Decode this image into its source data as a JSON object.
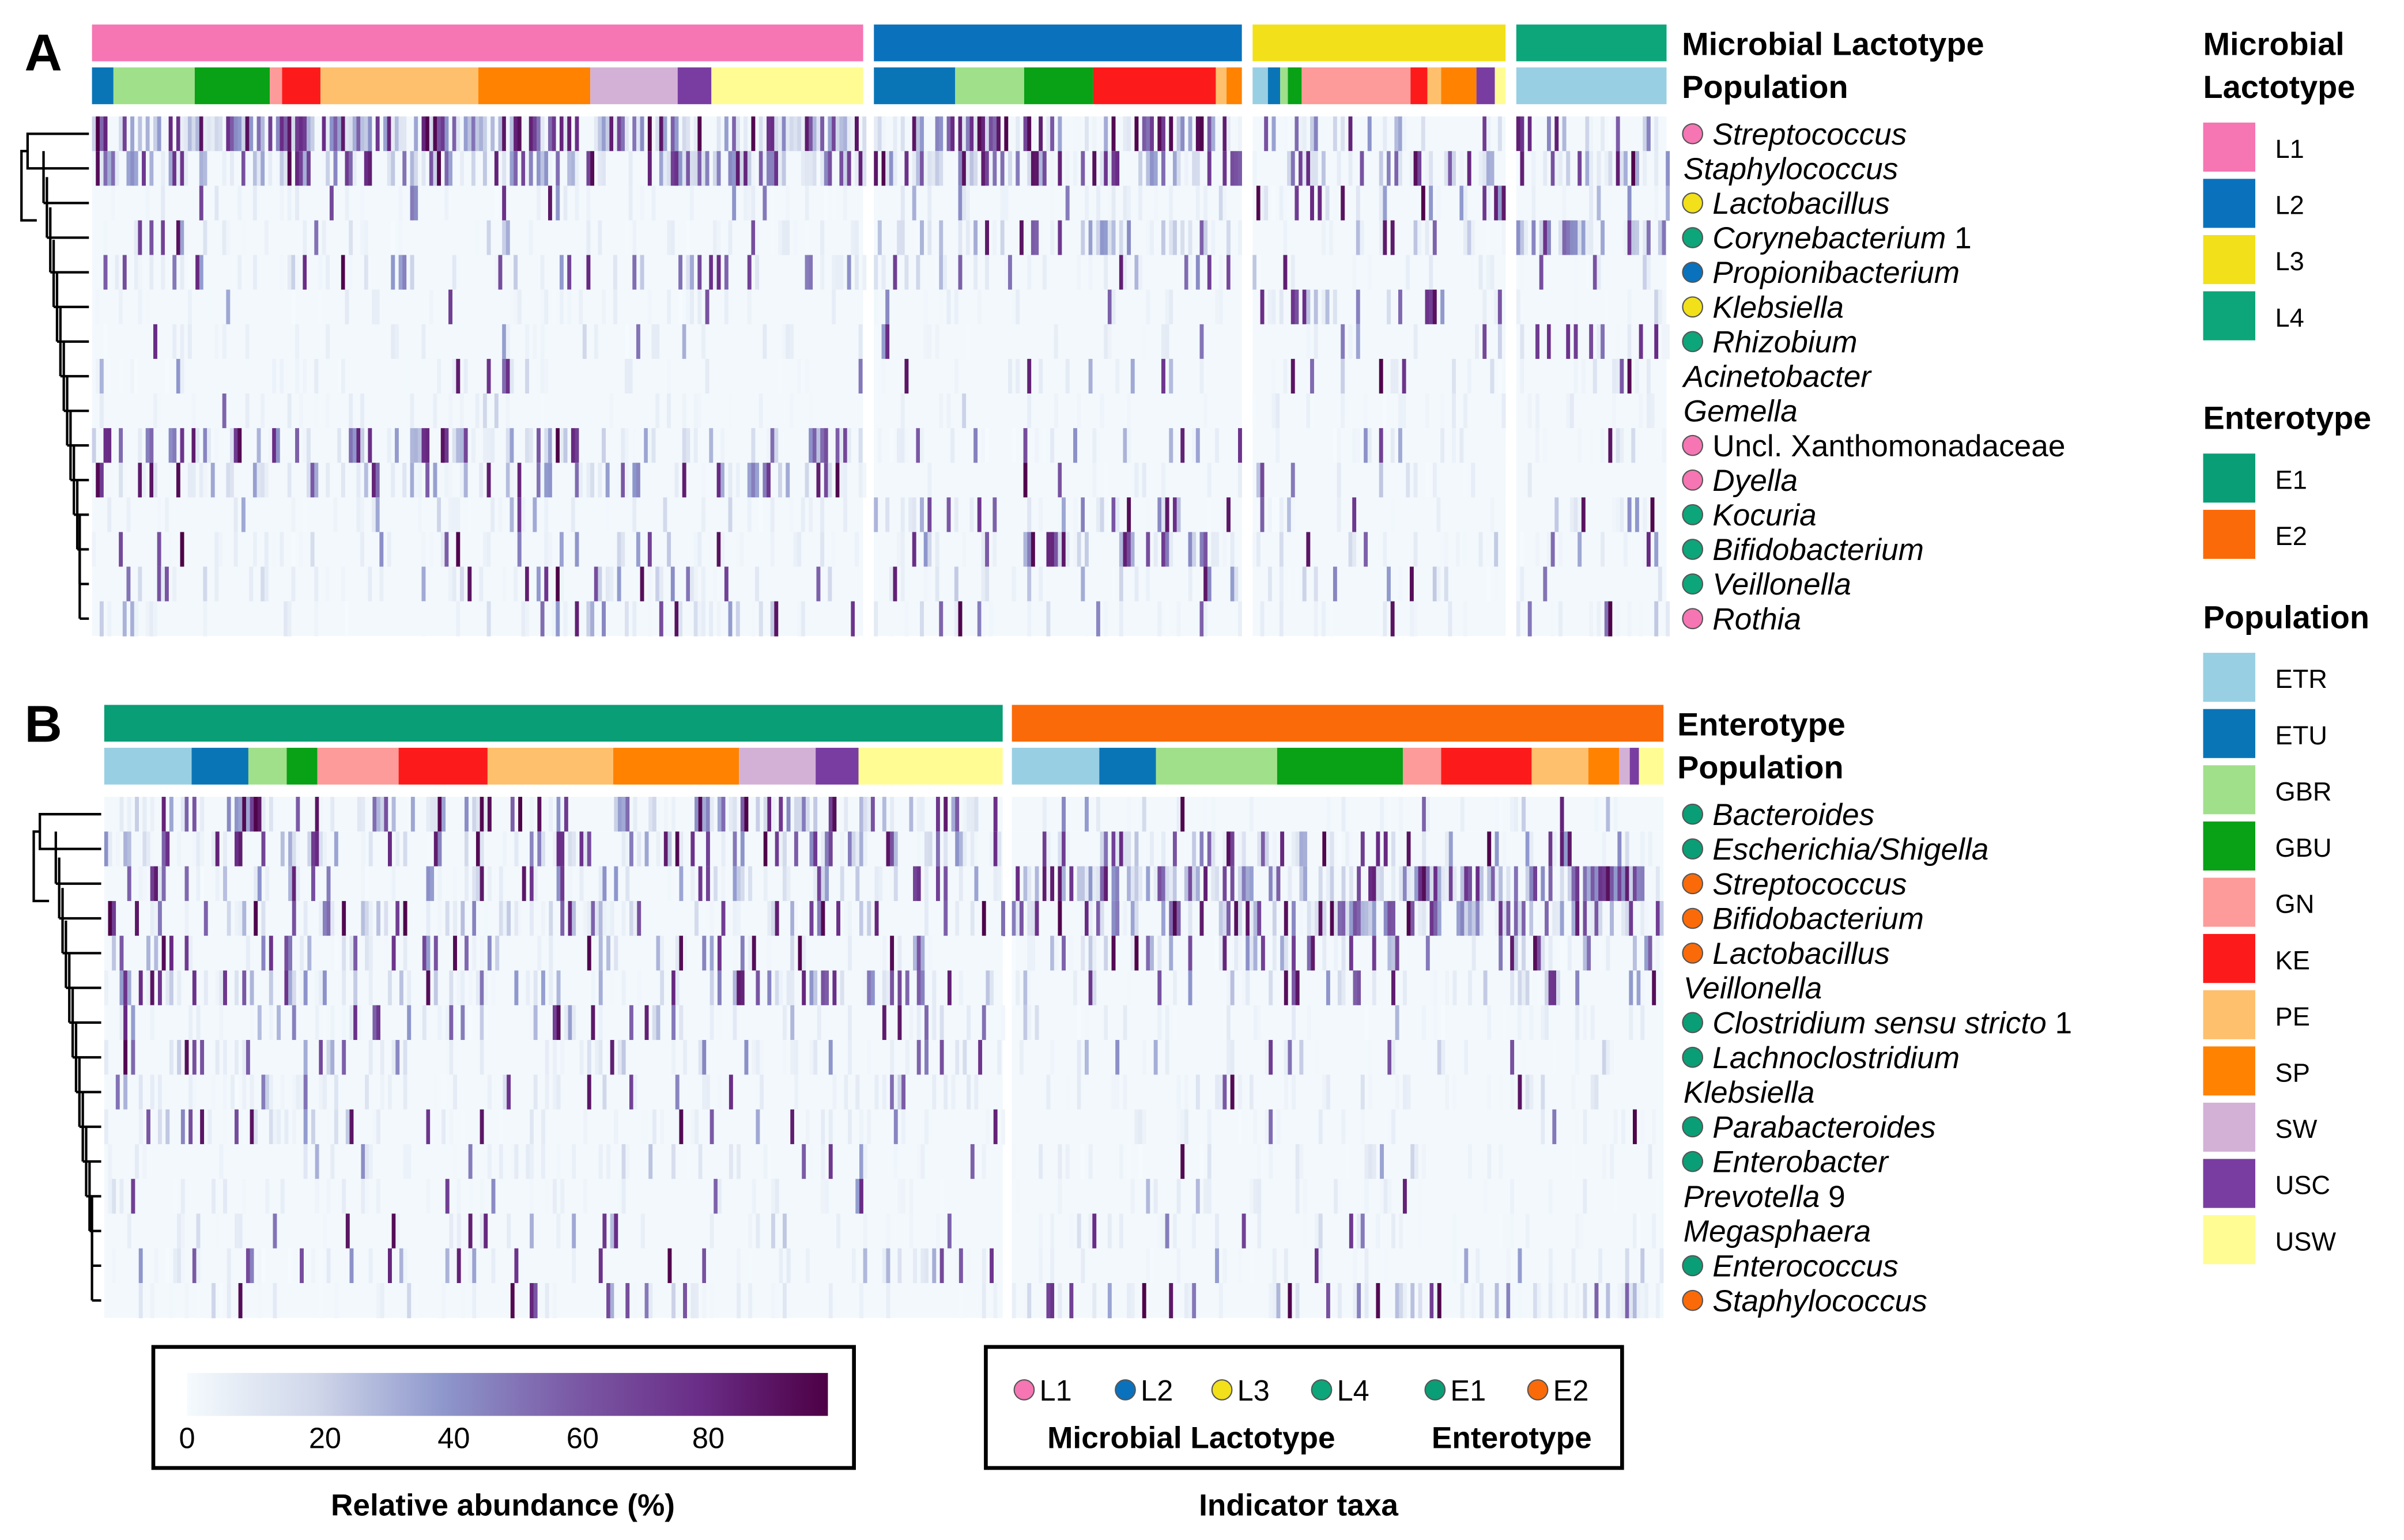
{
  "colors": {
    "L1": "#f675b3",
    "L2": "#0a72bd",
    "L3": "#f2e01a",
    "L4": "#0ca67a",
    "E1": "#0a9e76",
    "E2": "#fb6a08",
    "ETR": "#99cfe3",
    "ETU": "#0a75b6",
    "GBR": "#a1e08a",
    "GBU": "#09a116",
    "GN": "#fc9b99",
    "KE": "#fd1a1a",
    "PE": "#fec06d",
    "SP": "#ff8200",
    "SW": "#d3b1d6",
    "USC": "#793da1",
    "USW": "#fffc94",
    "scale": [
      "#f4fafd",
      "#d0d7ea",
      "#8e97cc",
      "#7b5aa6",
      "#6a2d87",
      "#4d0045"
    ]
  },
  "chart_data": [
    {
      "type": "heatmap",
      "panel_label": "A",
      "annotation_labels": [
        "Microbial Lactotype",
        "Population"
      ],
      "groups": [
        "L1",
        "L2",
        "L3",
        "L4"
      ],
      "population_order": {
        "L1": [
          "ETU",
          "GBR",
          "GBU",
          "GN",
          "KE",
          "PE",
          "SP",
          "SW",
          "USC",
          "USW"
        ],
        "L2": [
          "ETU",
          "GBR",
          "GBU",
          "KE",
          "PE",
          "SP"
        ],
        "L3": [
          "ETR",
          "ETU",
          "GBR",
          "GBU",
          "GN",
          "KE",
          "PE",
          "SP",
          "USC",
          "USW"
        ],
        "L4": [
          "ETR"
        ]
      },
      "rows": [
        {
          "name": "Streptococcus",
          "suffix": "",
          "italic": true,
          "indicator": "L1",
          "density": [
            0.7,
            0.5,
            0.25,
            0.3
          ]
        },
        {
          "name": "Staphylococcus",
          "suffix": "",
          "italic": true,
          "indicator": null,
          "density": [
            0.55,
            0.5,
            0.3,
            0.4
          ]
        },
        {
          "name": "Lactobacillus",
          "suffix": "",
          "italic": true,
          "indicator": "L3",
          "density": [
            0.05,
            0.05,
            0.3,
            0.03
          ]
        },
        {
          "name": "Corynebacterium",
          "suffix": " 1",
          "italic": true,
          "indicator": "L4",
          "density": [
            0.1,
            0.3,
            0.05,
            0.45
          ]
        },
        {
          "name": "Propionibacterium",
          "suffix": "",
          "italic": true,
          "indicator": "L2",
          "density": [
            0.15,
            0.15,
            0.05,
            0.1
          ]
        },
        {
          "name": "Klebsiella",
          "suffix": "",
          "italic": true,
          "indicator": "L3",
          "density": [
            0.02,
            0.03,
            0.15,
            0.02
          ]
        },
        {
          "name": "Rhizobium",
          "suffix": "",
          "italic": true,
          "indicator": "L4",
          "density": [
            0.03,
            0.03,
            0.05,
            0.3
          ]
        },
        {
          "name": "Acinetobacter",
          "suffix": "",
          "italic": true,
          "indicator": null,
          "density": [
            0.05,
            0.05,
            0.1,
            0.05
          ]
        },
        {
          "name": "Gemella",
          "suffix": "",
          "italic": true,
          "indicator": null,
          "density": [
            0.03,
            0.03,
            0.03,
            0.03
          ]
        },
        {
          "name": "Uncl. Xanthomonadaceae",
          "suffix": "",
          "italic": false,
          "indicator": "L1",
          "density": [
            0.3,
            0.05,
            0.05,
            0.05
          ]
        },
        {
          "name": "Dyella",
          "suffix": "",
          "italic": true,
          "indicator": "L1",
          "density": [
            0.25,
            0.05,
            0.03,
            0.03
          ]
        },
        {
          "name": "Kocuria",
          "suffix": "",
          "italic": true,
          "indicator": "L4",
          "density": [
            0.05,
            0.2,
            0.05,
            0.3
          ]
        },
        {
          "name": "Bifidobacterium",
          "suffix": "",
          "italic": true,
          "indicator": "L4",
          "density": [
            0.05,
            0.2,
            0.1,
            0.05
          ]
        },
        {
          "name": "Veillonella",
          "suffix": "",
          "italic": true,
          "indicator": "L4",
          "density": [
            0.1,
            0.15,
            0.1,
            0.1
          ]
        },
        {
          "name": "Rothia",
          "suffix": "",
          "italic": true,
          "indicator": "L1",
          "density": [
            0.1,
            0.1,
            0.05,
            0.1
          ]
        }
      ]
    },
    {
      "type": "heatmap",
      "panel_label": "B",
      "annotation_labels": [
        "Enterotype",
        "Population"
      ],
      "groups": [
        "E1",
        "E2"
      ],
      "population_order": {
        "E1": [
          "ETR",
          "ETU",
          "GBR",
          "GBU",
          "GN",
          "KE",
          "PE",
          "SP",
          "SW",
          "USC",
          "USW"
        ],
        "E2": [
          "ETR",
          "ETU",
          "GBR",
          "GBU",
          "GN",
          "KE",
          "PE",
          "SP",
          "SW",
          "USC",
          "USW"
        ]
      },
      "rows": [
        {
          "name": "Bacteroides",
          "suffix": "",
          "italic": true,
          "indicator": "E1",
          "density": [
            0.35,
            0.03
          ]
        },
        {
          "name": "Escherichia/Shigella",
          "suffix": "",
          "italic": true,
          "indicator": "E1",
          "density": [
            0.4,
            0.3
          ]
        },
        {
          "name": "Streptococcus",
          "suffix": "",
          "italic": true,
          "indicator": "E2",
          "density": [
            0.2,
            0.6
          ]
        },
        {
          "name": "Bifidobacterium",
          "suffix": "",
          "italic": true,
          "indicator": "E2",
          "density": [
            0.2,
            0.45
          ]
        },
        {
          "name": "Lactobacillus",
          "suffix": "",
          "italic": true,
          "indicator": "E2",
          "density": [
            0.15,
            0.3
          ]
        },
        {
          "name": "Veillonella",
          "suffix": "",
          "italic": true,
          "indicator": null,
          "density": [
            0.3,
            0.2
          ]
        },
        {
          "name": "Clostridium sensu stricto",
          "suffix": " 1",
          "italic": true,
          "indicator": "E1",
          "density": [
            0.15,
            0.03
          ]
        },
        {
          "name": "Lachnoclostridium",
          "suffix": "",
          "italic": true,
          "indicator": "E1",
          "density": [
            0.15,
            0.03
          ]
        },
        {
          "name": "Klebsiella",
          "suffix": "",
          "italic": true,
          "indicator": null,
          "density": [
            0.1,
            0.05
          ]
        },
        {
          "name": "Parabacteroides",
          "suffix": "",
          "italic": true,
          "indicator": "E1",
          "density": [
            0.1,
            0.02
          ]
        },
        {
          "name": "Enterobacter",
          "suffix": "",
          "italic": true,
          "indicator": "E1",
          "density": [
            0.05,
            0.03
          ]
        },
        {
          "name": "Prevotella",
          "suffix": " 9",
          "italic": true,
          "indicator": null,
          "density": [
            0.03,
            0.02
          ]
        },
        {
          "name": "Megasphaera",
          "suffix": "",
          "italic": true,
          "indicator": null,
          "density": [
            0.08,
            0.03
          ]
        },
        {
          "name": "Enterococcus",
          "suffix": "",
          "italic": true,
          "indicator": "E1",
          "density": [
            0.08,
            0.03
          ]
        },
        {
          "name": "Staphylococcus",
          "suffix": "",
          "italic": true,
          "indicator": "E2",
          "density": [
            0.05,
            0.15
          ]
        }
      ]
    }
  ],
  "legend": {
    "lactotype_title": [
      "Microbial",
      "Lactotype"
    ],
    "lactotype_items": [
      "L1",
      "L2",
      "L3",
      "L4"
    ],
    "enterotype_title": "Enterotype",
    "enterotype_items": [
      "E1",
      "E2"
    ],
    "population_title": "Population",
    "population_items": [
      "ETR",
      "ETU",
      "GBR",
      "GBU",
      "GN",
      "KE",
      "PE",
      "SP",
      "SW",
      "USC",
      "USW"
    ]
  },
  "colorbar": {
    "ticks": [
      "0",
      "20",
      "40",
      "60",
      "80"
    ],
    "range": [
      0,
      100
    ],
    "label": "Relative abundance (%)"
  },
  "indicator_legend": {
    "items": [
      "L1",
      "L2",
      "L3",
      "L4",
      "E1",
      "E2"
    ],
    "group_labels": [
      "Microbial Lactotype",
      "Enterotype"
    ],
    "label": "Indicator taxa"
  }
}
